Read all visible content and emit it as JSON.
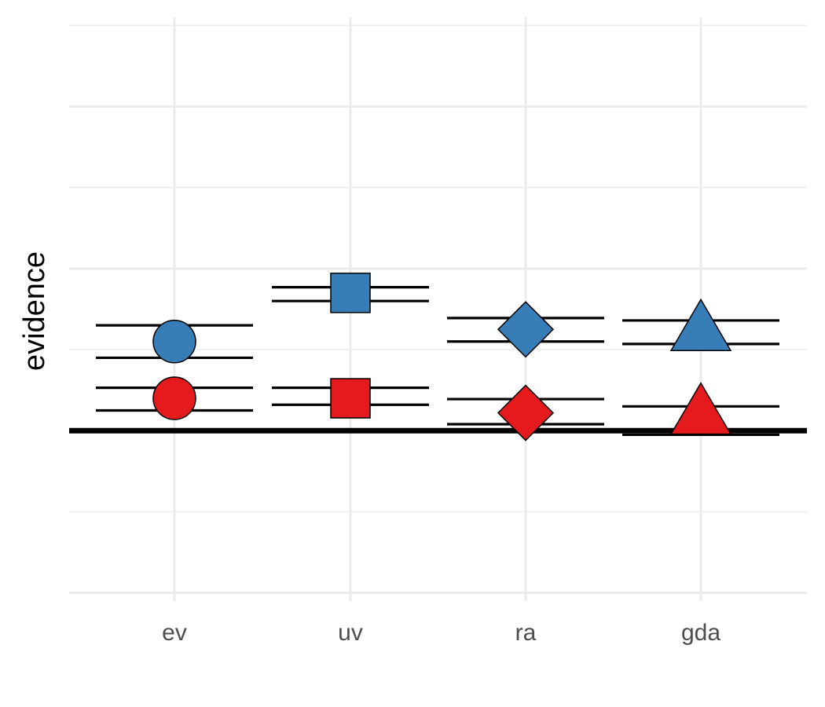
{
  "chart_data": {
    "type": "scatter",
    "title": "",
    "xlabel": "",
    "ylabel": "evidence",
    "categories": [
      "ev",
      "uv",
      "ra",
      "gda"
    ],
    "ylim": [
      -2.1,
      5.1
    ],
    "y_gridlines_major": [
      -2,
      0,
      2,
      4
    ],
    "y_gridlines_minor": [
      -1,
      1,
      3,
      5
    ],
    "grid": true,
    "legend": "none",
    "reference_line_y": 0,
    "series": [
      {
        "color": "#377EB8",
        "shapes": [
          "circle",
          "square",
          "diamond",
          "triangle"
        ],
        "values": [
          1.1,
          1.7,
          1.25,
          1.25
        ],
        "interval_low": [
          0.9,
          1.6,
          1.1,
          1.07
        ],
        "interval_high": [
          1.3,
          1.77,
          1.39,
          1.36
        ]
      },
      {
        "color": "#E41A1C",
        "shapes": [
          "circle",
          "square",
          "diamond",
          "triangle"
        ],
        "values": [
          0.4,
          0.4,
          0.22,
          0.22
        ],
        "interval_low": [
          0.25,
          0.32,
          0.08,
          -0.05
        ],
        "interval_high": [
          0.53,
          0.53,
          0.39,
          0.3
        ]
      }
    ]
  }
}
